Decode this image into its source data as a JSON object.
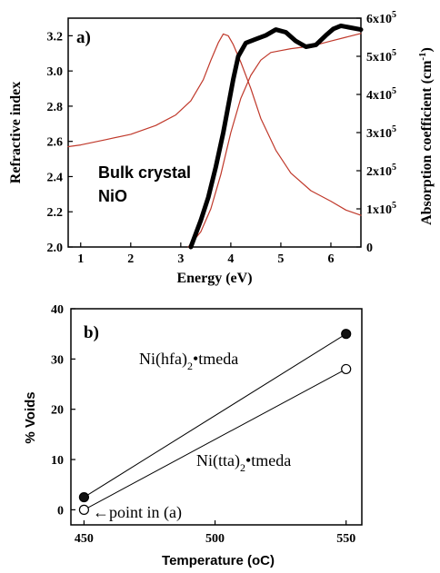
{
  "chart_data": [
    {
      "panel": "a)",
      "type": "line",
      "xlabel": "Energy (eV)",
      "ylabel": "Refractive index",
      "ylabel_right": "Absorption coefficient (cm",
      "ylabel_right_sup": "-1",
      "ylabel_right_close": ")",
      "xlim": [
        0.75,
        6.6
      ],
      "ylim": [
        2.0,
        3.3
      ],
      "ylim_right": [
        0,
        600000
      ],
      "x_ticks": [
        "1",
        "2",
        "3",
        "4",
        "5",
        "6"
      ],
      "y_ticks": [
        "2.0",
        "2.2",
        "2.4",
        "2.6",
        "2.8",
        "3.0",
        "3.2"
      ],
      "y_right_ticks": [
        {
          "base": "0",
          "exp": ""
        },
        {
          "base": "1x10",
          "exp": "5"
        },
        {
          "base": "2x10",
          "exp": "5"
        },
        {
          "base": "3x10",
          "exp": "5"
        },
        {
          "base": "4x10",
          "exp": "5"
        },
        {
          "base": "5x10",
          "exp": "5"
        },
        {
          "base": "6x10",
          "exp": "5"
        }
      ],
      "annotation": [
        "Bulk crystal",
        "NiO"
      ],
      "series": [
        {
          "axis": "left",
          "color": "#c0392b",
          "x": [
            0.75,
            1.0,
            1.5,
            2.0,
            2.5,
            2.9,
            3.2,
            3.45,
            3.6,
            3.75,
            3.85,
            3.95,
            4.05,
            4.2,
            4.4,
            4.6,
            4.9,
            5.2,
            5.6,
            6.0,
            6.3,
            6.6
          ],
          "y": [
            2.57,
            2.58,
            2.61,
            2.64,
            2.69,
            2.75,
            2.83,
            2.95,
            3.06,
            3.16,
            3.21,
            3.2,
            3.15,
            3.05,
            2.9,
            2.73,
            2.55,
            2.42,
            2.32,
            2.26,
            2.21,
            2.18
          ]
        },
        {
          "axis": "right",
          "color": "#c0392b",
          "x": [
            3.15,
            3.4,
            3.6,
            3.8,
            4.0,
            4.2,
            4.4,
            4.6,
            4.8,
            5.0,
            5.2,
            5.5,
            5.8,
            6.0,
            6.3,
            6.6
          ],
          "y": [
            0,
            40000,
            100000,
            190000,
            300000,
            390000,
            450000,
            490000,
            510000,
            515000,
            520000,
            525000,
            533000,
            540000,
            550000,
            560000
          ]
        },
        {
          "axis": "right",
          "color": "#000000",
          "x": [
            3.2,
            3.4,
            3.55,
            3.7,
            3.85,
            3.95,
            4.05,
            4.15,
            4.3,
            4.5,
            4.7,
            4.9,
            5.1,
            5.3,
            5.5,
            5.7,
            5.9,
            6.05,
            6.2,
            6.4,
            6.6
          ],
          "y": [
            0,
            70000,
            130000,
            210000,
            300000,
            370000,
            440000,
            500000,
            535000,
            545000,
            555000,
            570000,
            563000,
            540000,
            525000,
            530000,
            555000,
            572000,
            580000,
            575000,
            570000
          ]
        }
      ]
    },
    {
      "panel": "b)",
      "type": "scatter",
      "xlabel": "Temperature (",
      "xlabel_unit": "oC)",
      "ylabel": "% Voids",
      "xlim": [
        445,
        556
      ],
      "ylim": [
        -3,
        40
      ],
      "x_ticks": [
        "450",
        "500",
        "550"
      ],
      "y_ticks": [
        "0",
        "10",
        "20",
        "30",
        "40"
      ],
      "series": [
        {
          "name": "Ni(hfa)",
          "sub": "2",
          "suffix": "•tmeda",
          "marker": "filled",
          "x": [
            450,
            550
          ],
          "y": [
            2.5,
            35
          ]
        },
        {
          "name": "Ni(tta)",
          "sub": "2",
          "suffix": "•tmeda",
          "marker": "open",
          "x": [
            450,
            550
          ],
          "y": [
            0,
            28
          ]
        }
      ],
      "arrow_label": "←point in (a)"
    }
  ]
}
